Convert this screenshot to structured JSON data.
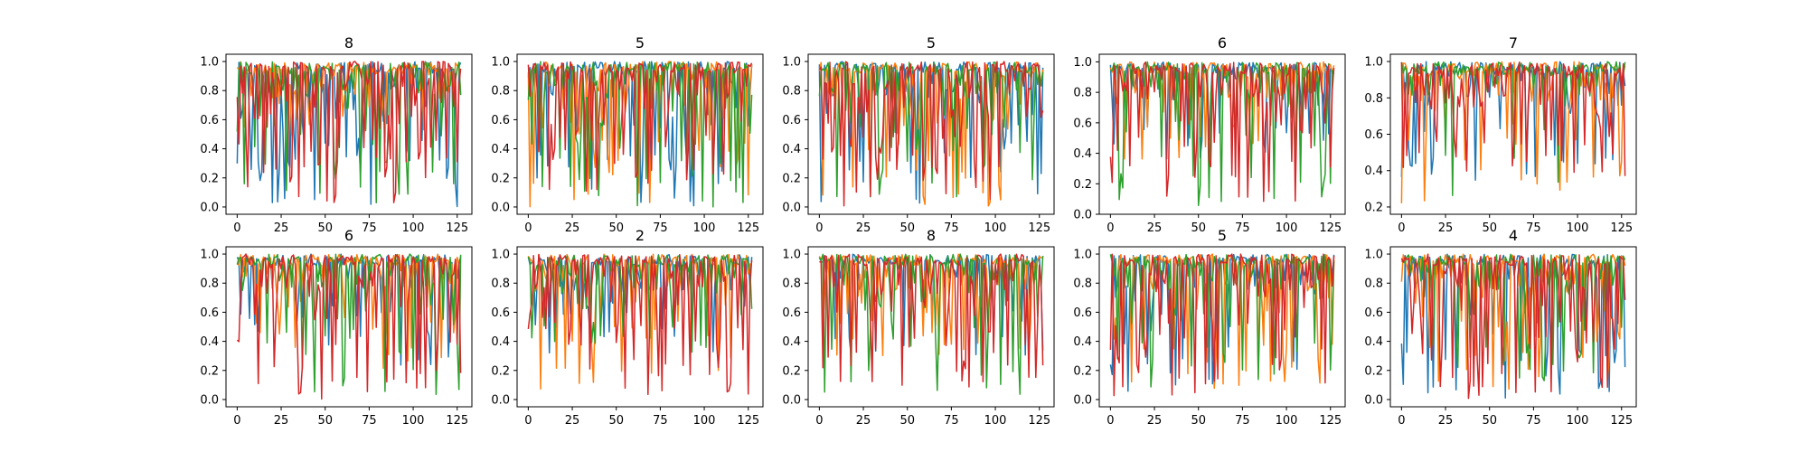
{
  "colors": [
    "#1f77b4",
    "#ff7f0e",
    "#2ca02c",
    "#d62728"
  ],
  "chart_data": [
    {
      "type": "line",
      "title": "8",
      "xticks": [
        "0",
        "25",
        "50",
        "75",
        "100",
        "125"
      ],
      "yticks": [
        "0.0",
        "0.2",
        "0.4",
        "0.6",
        "0.8",
        "1.0"
      ],
      "xlim": [
        -6.35,
        133.35
      ],
      "ylim": [
        -0.05,
        1.05
      ],
      "n": 128,
      "dip": [
        0.0,
        0.4,
        0.0,
        0.0
      ],
      "drop": [
        0.35,
        0.28,
        0.35,
        0.4
      ],
      "seed": 11
    },
    {
      "type": "line",
      "title": "5",
      "xticks": [
        "0",
        "25",
        "50",
        "75",
        "100",
        "125"
      ],
      "yticks": [
        "0.0",
        "0.2",
        "0.4",
        "0.6",
        "0.8",
        "1.0"
      ],
      "xlim": [
        -6.35,
        133.35
      ],
      "ylim": [
        -0.05,
        1.05
      ],
      "n": 128,
      "dip": [
        0.0,
        0.0,
        0.0,
        0.05
      ],
      "drop": [
        0.3,
        0.3,
        0.3,
        0.35
      ],
      "seed": 23
    },
    {
      "type": "line",
      "title": "5",
      "xticks": [
        "0",
        "25",
        "50",
        "75",
        "100",
        "125"
      ],
      "yticks": [
        "0.0",
        "0.2",
        "0.4",
        "0.6",
        "0.8",
        "1.0"
      ],
      "xlim": [
        -6.35,
        133.35
      ],
      "ylim": [
        -0.05,
        1.05
      ],
      "n": 128,
      "dip": [
        0.0,
        0.0,
        0.05,
        0.0
      ],
      "drop": [
        0.3,
        0.3,
        0.3,
        0.4
      ],
      "seed": 37
    },
    {
      "type": "line",
      "title": "6",
      "xticks": [
        "0",
        "25",
        "50",
        "75",
        "100",
        "125"
      ],
      "yticks": [
        "0.0",
        "0.2",
        "0.4",
        "0.6",
        "0.8",
        "1.0"
      ],
      "xlim": [
        -6.35,
        133.35
      ],
      "ylim": [
        -0.0,
        1.05
      ],
      "n": 128,
      "dip": [
        0.35,
        0.35,
        0.05,
        0.05
      ],
      "drop": [
        0.2,
        0.25,
        0.25,
        0.35
      ],
      "seed": 41
    },
    {
      "type": "line",
      "title": "7",
      "xticks": [
        "0",
        "25",
        "50",
        "75",
        "100",
        "125"
      ],
      "yticks": [
        "0.2",
        "0.4",
        "0.6",
        "0.8",
        "1.0"
      ],
      "xlim": [
        -6.35,
        133.35
      ],
      "ylim": [
        0.16,
        1.04
      ],
      "n": 128,
      "dip": [
        0.3,
        0.22,
        0.25,
        0.35
      ],
      "drop": [
        0.12,
        0.15,
        0.12,
        0.3
      ],
      "seed": 53
    },
    {
      "type": "line",
      "title": "6",
      "xticks": [
        "0",
        "25",
        "50",
        "75",
        "100",
        "125"
      ],
      "yticks": [
        "0.0",
        "0.2",
        "0.4",
        "0.6",
        "0.8",
        "1.0"
      ],
      "xlim": [
        -6.35,
        133.35
      ],
      "ylim": [
        -0.05,
        1.05
      ],
      "n": 128,
      "dip": [
        0.1,
        0.2,
        0.0,
        0.0
      ],
      "drop": [
        0.25,
        0.25,
        0.25,
        0.35
      ],
      "seed": 61
    },
    {
      "type": "line",
      "title": "2",
      "xticks": [
        "0",
        "25",
        "50",
        "75",
        "100",
        "125"
      ],
      "yticks": [
        "0.0",
        "0.2",
        "0.4",
        "0.6",
        "0.8",
        "1.0"
      ],
      "xlim": [
        -6.35,
        133.35
      ],
      "ylim": [
        -0.05,
        1.05
      ],
      "n": 128,
      "dip": [
        0.3,
        0.05,
        0.3,
        0.0
      ],
      "drop": [
        0.25,
        0.25,
        0.25,
        0.35
      ],
      "seed": 71
    },
    {
      "type": "line",
      "title": "8",
      "xticks": [
        "0",
        "25",
        "50",
        "75",
        "100",
        "125"
      ],
      "yticks": [
        "0.0",
        "0.2",
        "0.4",
        "0.6",
        "0.8",
        "1.0"
      ],
      "xlim": [
        -6.35,
        133.35
      ],
      "ylim": [
        -0.05,
        1.05
      ],
      "n": 128,
      "dip": [
        0.3,
        0.3,
        0.0,
        0.05
      ],
      "drop": [
        0.2,
        0.25,
        0.25,
        0.35
      ],
      "seed": 83
    },
    {
      "type": "line",
      "title": "5",
      "xticks": [
        "0",
        "25",
        "50",
        "75",
        "100",
        "125"
      ],
      "yticks": [
        "0.0",
        "0.2",
        "0.4",
        "0.6",
        "0.8",
        "1.0"
      ],
      "xlim": [
        -6.35,
        133.35
      ],
      "ylim": [
        -0.05,
        1.05
      ],
      "n": 128,
      "dip": [
        0.05,
        0.05,
        0.05,
        0.0
      ],
      "drop": [
        0.25,
        0.3,
        0.25,
        0.35
      ],
      "seed": 97
    },
    {
      "type": "line",
      "title": "4",
      "xticks": [
        "0",
        "25",
        "50",
        "75",
        "100",
        "125"
      ],
      "yticks": [
        "0.0",
        "0.2",
        "0.4",
        "0.6",
        "0.8",
        "1.0"
      ],
      "xlim": [
        -6.35,
        133.35
      ],
      "ylim": [
        -0.05,
        1.05
      ],
      "n": 128,
      "dip": [
        0.0,
        0.05,
        0.1,
        0.0
      ],
      "drop": [
        0.3,
        0.3,
        0.25,
        0.35
      ],
      "seed": 109
    }
  ]
}
